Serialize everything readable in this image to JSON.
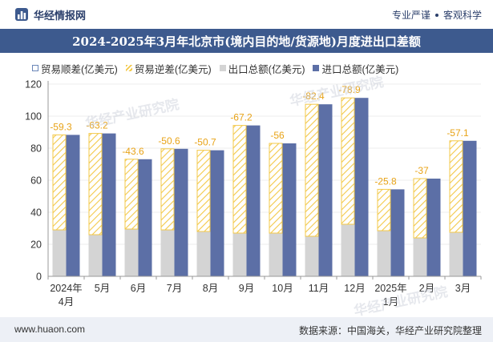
{
  "header": {
    "brand": "华经情报网",
    "tags": [
      "专业严谨",
      "客观科学"
    ]
  },
  "title": "2024-2025年3月年北京市(境内目的地/货源地)月度进出口差额",
  "legend": {
    "surplus": "贸易顺差(亿美元)",
    "deficit": "贸易逆差(亿美元)",
    "export": "出口总额(亿美元)",
    "import": "进口总额(亿美元)"
  },
  "watermark": "华经产业研究院",
  "footer": {
    "site": "www.huaon.com",
    "source": "数据来源：中国海关，华经产业研究院整理"
  },
  "chart_data": {
    "type": "bar",
    "categories": [
      "2024年4月",
      "5月",
      "6月",
      "7月",
      "8月",
      "9月",
      "10月",
      "11月",
      "12月",
      "2025年1月",
      "2月",
      "3月"
    ],
    "series": [
      {
        "name": "出口总额(亿美元)",
        "values": [
          29,
          26,
          29.5,
          29,
          28,
          27,
          27,
          25,
          32.5,
          28.5,
          24,
          27.5
        ]
      },
      {
        "name": "进口总额(亿美元)",
        "values": [
          88.3,
          89.2,
          73.1,
          79.6,
          78.7,
          94.2,
          83,
          107.4,
          111.4,
          54.3,
          61,
          84.6
        ]
      },
      {
        "name": "贸易逆差(亿美元)",
        "values": [
          -59.3,
          -63.2,
          -43.6,
          -50.6,
          -50.7,
          -67.2,
          -56,
          -82.4,
          -78.9,
          -25.8,
          -37,
          -57.1
        ]
      }
    ],
    "ylim": [
      0,
      120
    ],
    "yticks": [
      0,
      20,
      40,
      60,
      80,
      100,
      120
    ],
    "colors": {
      "export": "#d4d4d4",
      "import": "#5c6fa6",
      "deficit_stroke": "#f3c94a",
      "deficit_label": "#e8a317",
      "surplus": "#6a86b8"
    }
  }
}
